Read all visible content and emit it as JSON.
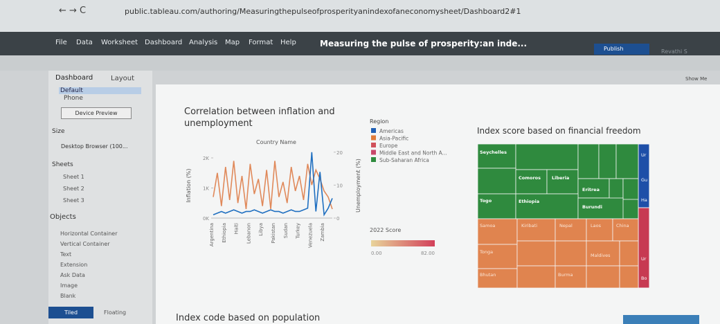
{
  "browser": {
    "url": "public.tableau.com/authoring/Measuringthepulseofprosperityanindexofaneconomysheet/Dashboard2#1"
  },
  "menu": [
    "File",
    "Data",
    "Worksheet",
    "Dashboard",
    "Analysis",
    "Map",
    "Format",
    "Help"
  ],
  "workbook_title": "Measuring the pulse of prosperity:an inde...",
  "publish": "Publish",
  "user": "Revathi S",
  "show_me": "Show Me",
  "left_panel": {
    "tabs": [
      "Dashboard",
      "Layout"
    ],
    "devices": [
      "Default",
      "Phone"
    ],
    "device_preview": "Device Preview",
    "size_label": "Size",
    "size_value": "Desktop Browser (100...",
    "sheets_label": "Sheets",
    "sheets": [
      "Sheet 1",
      "Sheet 2",
      "Sheet 3"
    ],
    "objects_label": "Objects",
    "objects": [
      "Horizontal Container",
      "Vertical Container",
      "Text",
      "Extension",
      "Ask Data",
      "Image",
      "Blank"
    ],
    "layout_modes": [
      "Tiled",
      "Floating"
    ]
  },
  "chart_data": {
    "type": "line",
    "title": "Correlation between inflation and unemployment",
    "x_label": "Country Name",
    "y_label": "Inflation (%)",
    "y2_label": "Unemployment (%)",
    "categories": [
      "Argentina",
      null,
      null,
      "Ethiopia",
      null,
      null,
      "Haiti",
      null,
      null,
      "Lebanon",
      null,
      null,
      "Libya",
      null,
      null,
      "Pakistan",
      null,
      null,
      "Sudan",
      null,
      null,
      "Turkey",
      null,
      null,
      "Venezuela",
      null,
      null,
      "Zambia",
      null,
      null
    ],
    "ylim": [
      0,
      2300
    ],
    "yticks": [
      {
        "value": 0,
        "label": "0K"
      },
      {
        "value": 1000,
        "label": "1K"
      },
      {
        "value": 2000,
        "label": "2K"
      }
    ],
    "y2lim": [
      0,
      21
    ],
    "y2ticks": [
      0,
      10,
      20
    ],
    "series": [
      {
        "name": "Inflation (%)",
        "color": "#e0895a",
        "values": [
          700,
          1500,
          400,
          1700,
          600,
          1900,
          500,
          1400,
          300,
          1800,
          800,
          1300,
          400,
          1600,
          300,
          1900,
          700,
          1200,
          500,
          1700,
          900,
          1400,
          600,
          1800,
          1100,
          1600,
          1300,
          900,
          700,
          300
        ]
      },
      {
        "name": "Unemployment (%)",
        "color": "#1f6fc0",
        "axis": "y2",
        "values": [
          1,
          1.5,
          2,
          1.5,
          2,
          2.5,
          2,
          1.5,
          2,
          2,
          2.5,
          2,
          1.5,
          2,
          2.5,
          2,
          2,
          1.5,
          2,
          2.5,
          2,
          2,
          2.5,
          3,
          20,
          2,
          14,
          1,
          3,
          6
        ]
      }
    ]
  },
  "region_legend": {
    "title": "Region",
    "items": [
      {
        "name": "Americas",
        "color": "#1f5fb4"
      },
      {
        "name": "Asia-Pacific",
        "color": "#e07b39"
      },
      {
        "name": "Europe",
        "color": "#d0505a"
      },
      {
        "name": "Middle East and North A...",
        "color": "#c8486a"
      },
      {
        "name": "Sub-Saharan Africa",
        "color": "#2e8b3e"
      }
    ]
  },
  "score_legend": {
    "title": "2022 Score",
    "min": "0.00",
    "max": "82.00"
  },
  "treemap": {
    "title": "Index score based on financial freedom",
    "cells": [
      "Seychelles",
      "Comoros",
      "Liberia",
      "Eritrea",
      "Togo",
      "Ethiopia",
      "Burundi",
      "Samoa",
      "Kiribati",
      "Nepal",
      "Laos",
      "China",
      "Tonga",
      "Maldives",
      "Bhutan",
      "Burma",
      "Ur",
      "Gu",
      "Ha",
      "Ur",
      "Bo"
    ]
  },
  "bottom_title": "Index code based on population"
}
